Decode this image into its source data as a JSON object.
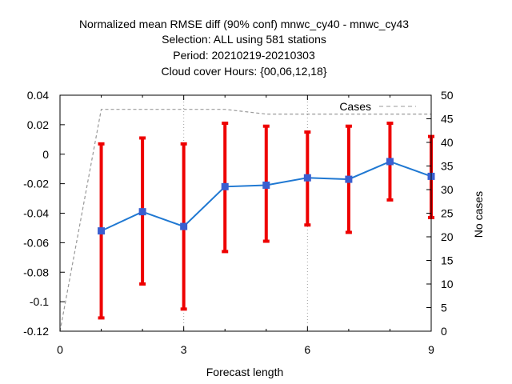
{
  "chart_data": {
    "type": "line",
    "title_lines": [
      "Normalized mean RMSE diff (90% conf) mnwc_cy40 - mnwc_cy43",
      "Selection: ALL using   581 stations",
      "Period: 20210219-20210303",
      "Cloud cover   Hours: {00,06,12,18}"
    ],
    "xlabel": "Forecast length",
    "ylabel": "",
    "y2label": "No cases",
    "xlim": [
      0,
      9
    ],
    "ylim": [
      -0.12,
      0.04
    ],
    "y2lim": [
      0,
      50
    ],
    "xticks": [
      0,
      3,
      6,
      9
    ],
    "xtick_labels": [
      "0",
      "3",
      "6",
      "9"
    ],
    "yticks": [
      -0.12,
      -0.1,
      -0.08,
      -0.06,
      -0.04,
      -0.02,
      0,
      0.02,
      0.04
    ],
    "ytick_labels": [
      "-0.12",
      "-0.1",
      "-0.08",
      "-0.06",
      "-0.04",
      "-0.02",
      "0",
      "0.02",
      "0.04"
    ],
    "y2ticks": [
      0,
      5,
      10,
      15,
      20,
      25,
      30,
      35,
      40,
      45,
      50
    ],
    "y2tick_labels": [
      "0",
      "5",
      "10",
      "15",
      "20",
      "25",
      "30",
      "35",
      "40",
      "45",
      "50"
    ],
    "grid": true,
    "series": [
      {
        "x": [
          1,
          2,
          3,
          4,
          5,
          6,
          7,
          8,
          9
        ],
        "values": [
          -0.052,
          -0.039,
          -0.049,
          -0.022,
          -0.021,
          -0.016,
          -0.017,
          -0.005,
          -0.015
        ],
        "err_low": [
          -0.111,
          -0.088,
          -0.105,
          -0.066,
          -0.059,
          -0.048,
          -0.053,
          -0.031,
          -0.043
        ],
        "err_high": [
          0.007,
          0.011,
          0.007,
          0.021,
          0.019,
          0.015,
          0.019,
          0.021,
          0.012
        ],
        "color": "#1f78d2",
        "err_color": "#ee0000"
      },
      {
        "name": "Cases",
        "axis": "y2",
        "x": [
          0,
          1,
          2,
          3,
          4,
          5,
          6,
          7,
          8,
          9
        ],
        "values": [
          0,
          47,
          47,
          47,
          47,
          46,
          46,
          46,
          46,
          46
        ],
        "color": "#999999"
      }
    ],
    "legend": {
      "label": "Cases",
      "placement": "top-right"
    }
  }
}
